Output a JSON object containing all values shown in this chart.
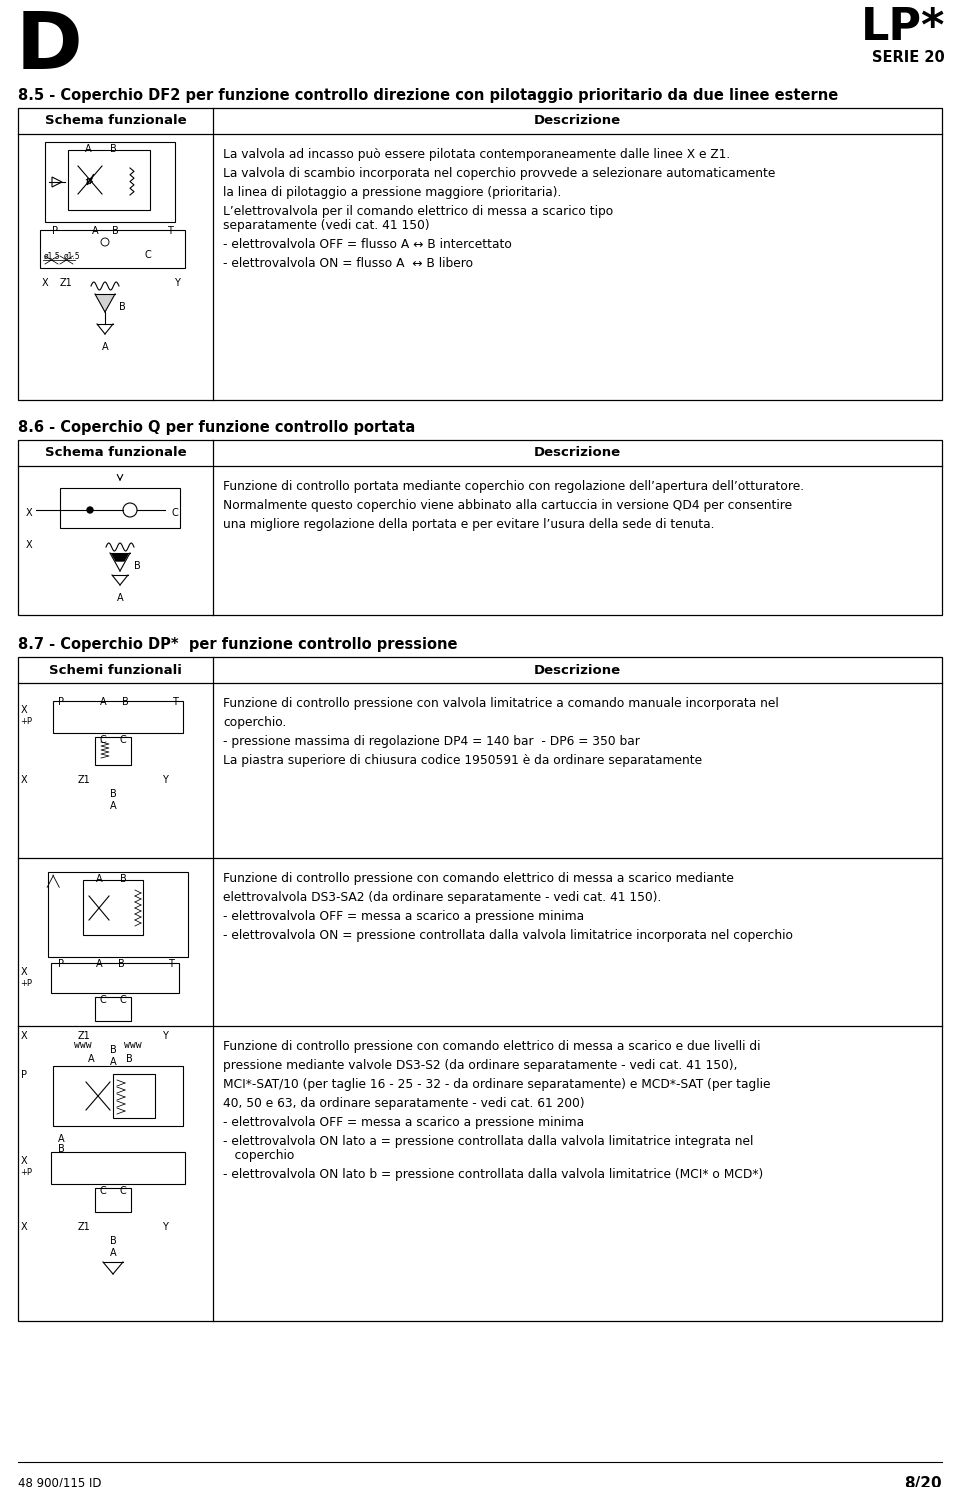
{
  "bg_color": "#ffffff",
  "header_logo_left": "D",
  "header_logo_right": "LP*",
  "header_sub": "SERIE 20",
  "footer_left": "48 900/115 ID",
  "footer_right": "8/20",
  "section_85_title": "8.5 - Coperchio DF2 per funzione controllo direzione con pilotaggio prioritario da due linee esterne",
  "section_85_col1": "Schema funzionale",
  "section_85_col2": "Descrizione",
  "section_85_desc_lines": [
    [
      "La valvola ad incasso può essere pilotata contemporaneamente dalle linee X e Z1.",
      false
    ],
    [
      "",
      false
    ],
    [
      "La valvola di scambio incorporata nel coperchio provvede a selezionare automaticamente",
      false
    ],
    [
      "",
      false
    ],
    [
      "la linea di pilotaggio a pressione maggiore (prioritaria).",
      false
    ],
    [
      "",
      false
    ],
    [
      "L’elettrovalvola per il comando elettrico di messa a scarico tipo ",
      false
    ],
    [
      "separatamente (vedi cat. 41 150)",
      false
    ],
    [
      "",
      false
    ],
    [
      "- elettrovalvola OFF = flusso A ↔ B intercettato",
      false
    ],
    [
      "",
      false
    ],
    [
      "- elettrovalvola ON = flusso A  ↔ B libero",
      false
    ]
  ],
  "section_86_title": "8.6 - Coperchio Q per funzione controllo portata",
  "section_86_col1": "Schema funzionale",
  "section_86_col2": "Descrizione",
  "section_86_desc_lines": [
    [
      "Funzione di controllo portata mediante coperchio con regolazione dell’apertura dell’otturatore.",
      false
    ],
    [
      "",
      false
    ],
    [
      "Normalmente questo coperchio viene abbinato alla cartuccia in versione QD4 per consentire",
      false
    ],
    [
      "",
      false
    ],
    [
      "una migliore regolazione della portata e per evitare l’usura della sede di tenuta.",
      false
    ]
  ],
  "section_87_title": "8.7 - Coperchio DP*  per funzione controllo pressione",
  "section_87_col1": "Schemi funzionali",
  "section_87_col2": "Descrizione",
  "section_87_row1_lines": [
    [
      "Funzione di controllo pressione con valvola limitatrice a comando manuale incorporata nel",
      false
    ],
    [
      "",
      false
    ],
    [
      "coperchio.",
      false
    ],
    [
      "",
      false
    ],
    [
      "- pressione massima di regolazione ",
      false
    ],
    [
      "La piastra superiore di chiusura codice ",
      false
    ]
  ],
  "section_87_row2_lines": [
    [
      "Funzione di controllo pressione con comando elettrico di messa a scarico mediante",
      false
    ],
    [
      "",
      false
    ],
    [
      "elettrovalvola ",
      false
    ],
    [
      "",
      false
    ],
    [
      "- elettrovalvola OFF = messa a scarico a pressione minima",
      false
    ],
    [
      "",
      false
    ],
    [
      "- elettrovalvola ON = pressione controllata dalla valvola limitatrice incorporata nel coperchio",
      false
    ]
  ],
  "section_87_row3_lines": [
    [
      "Funzione di controllo pressione con comando elettrico di messa a scarico e due livelli di",
      false
    ],
    [
      "",
      false
    ],
    [
      "pressione mediante valvole ",
      false
    ],
    [
      "",
      false
    ],
    [
      " (per taglie 16 - 25 - 32 - da ordinare separatamente) e ",
      false
    ],
    [
      "",
      false
    ],
    [
      "40, 50 e 63, da ordinare separatamente - vedi cat. 61 200)",
      false
    ],
    [
      "",
      false
    ],
    [
      "- elettrovalvola OFF = messa a scarico a pressione minima",
      false
    ],
    [
      "",
      false
    ],
    [
      "- elettrovalvola ON lato a = pressione controllata dalla valvola limitatrice integrata nel",
      false
    ],
    [
      "   coperchio",
      false
    ],
    [
      "",
      false
    ],
    [
      "- elettrovalvola ON lato b = pressione controllata dalla valvola limitatrice (",
      false
    ]
  ]
}
